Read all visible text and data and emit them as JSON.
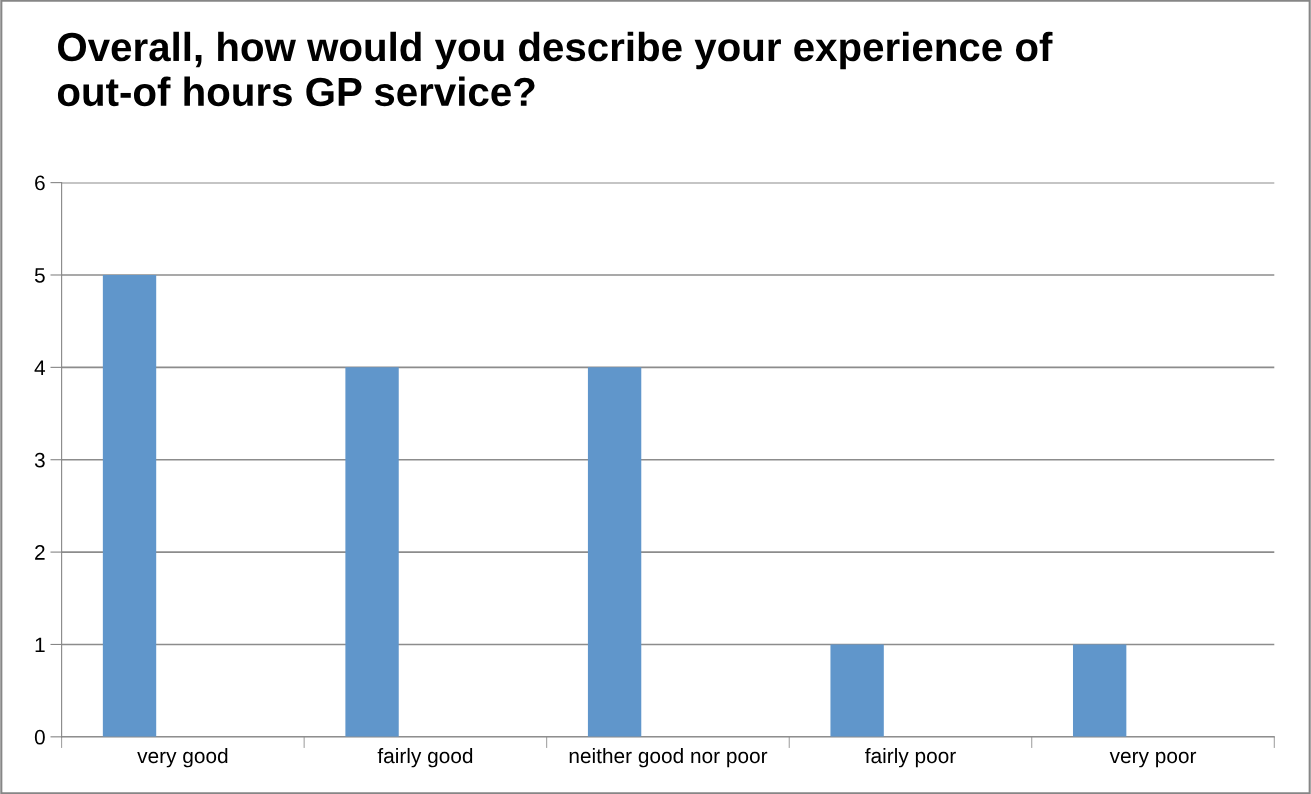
{
  "chart_data": {
    "type": "bar",
    "title": "Overall, how would you describe your experience of\nout-of hours GP service?",
    "categories": [
      "very good",
      "fairly good",
      "neither good nor poor",
      "fairly poor",
      "very poor"
    ],
    "values": [
      5,
      4,
      4,
      1,
      1
    ],
    "color": "#6096cb",
    "ylim": [
      0,
      6
    ],
    "yticks": [
      0,
      1,
      2,
      3,
      4,
      5,
      6
    ],
    "grid": "y",
    "legend": false
  }
}
